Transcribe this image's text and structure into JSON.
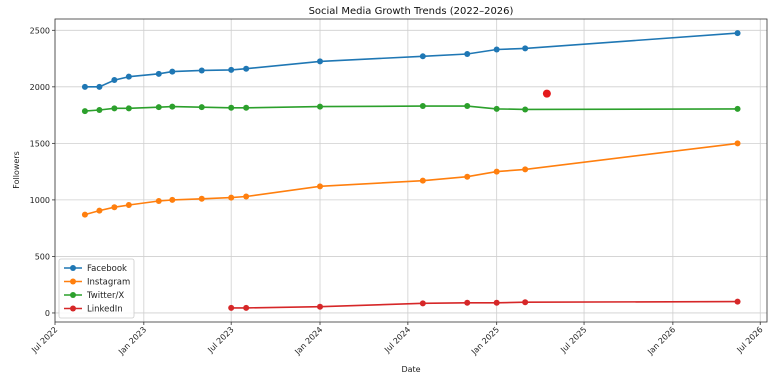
{
  "chart_data": {
    "type": "line",
    "title": "Social Media Growth Trends (2022–2026)",
    "xlabel": "Date",
    "ylabel": "Followers",
    "xlim": [
      "2022-07-01",
      "2026-07-15"
    ],
    "ylim": [
      -80,
      2600
    ],
    "grid": true,
    "legend_position": "lower-left",
    "x_ticks": [
      {
        "date": "2022-07-01",
        "label": "Jul 2022"
      },
      {
        "date": "2023-01-01",
        "label": "Jan 2023"
      },
      {
        "date": "2023-07-01",
        "label": "Jul 2023"
      },
      {
        "date": "2024-01-01",
        "label": "Jan 2024"
      },
      {
        "date": "2024-07-01",
        "label": "Jul 2024"
      },
      {
        "date": "2025-01-01",
        "label": "Jan 2025"
      },
      {
        "date": "2025-07-01",
        "label": "Jul 2025"
      },
      {
        "date": "2026-01-01",
        "label": "Jan 2026"
      },
      {
        "date": "2026-07-01",
        "label": "Jul 2026"
      }
    ],
    "y_ticks": [
      0,
      500,
      1000,
      1500,
      2000,
      2500
    ],
    "series": [
      {
        "name": "Facebook",
        "color": "#1f77b4",
        "points": [
          {
            "x": "2022-09-01",
            "y": 2000
          },
          {
            "x": "2022-10-01",
            "y": 2000
          },
          {
            "x": "2022-11-01",
            "y": 2060
          },
          {
            "x": "2022-12-01",
            "y": 2090
          },
          {
            "x": "2023-02-01",
            "y": 2115
          },
          {
            "x": "2023-03-01",
            "y": 2135
          },
          {
            "x": "2023-05-01",
            "y": 2145
          },
          {
            "x": "2023-07-01",
            "y": 2150
          },
          {
            "x": "2023-08-01",
            "y": 2160
          },
          {
            "x": "2024-01-01",
            "y": 2225
          },
          {
            "x": "2024-08-01",
            "y": 2270
          },
          {
            "x": "2024-11-01",
            "y": 2290
          },
          {
            "x": "2025-01-01",
            "y": 2330
          },
          {
            "x": "2025-03-01",
            "y": 2340
          },
          {
            "x": "2026-05-15",
            "y": 2475
          }
        ]
      },
      {
        "name": "Instagram",
        "color": "#ff7f0e",
        "points": [
          {
            "x": "2022-09-01",
            "y": 870
          },
          {
            "x": "2022-10-01",
            "y": 905
          },
          {
            "x": "2022-11-01",
            "y": 935
          },
          {
            "x": "2022-12-01",
            "y": 955
          },
          {
            "x": "2023-02-01",
            "y": 990
          },
          {
            "x": "2023-03-01",
            "y": 1000
          },
          {
            "x": "2023-05-01",
            "y": 1010
          },
          {
            "x": "2023-07-01",
            "y": 1020
          },
          {
            "x": "2023-08-01",
            "y": 1030
          },
          {
            "x": "2024-01-01",
            "y": 1120
          },
          {
            "x": "2024-08-01",
            "y": 1170
          },
          {
            "x": "2024-11-01",
            "y": 1205
          },
          {
            "x": "2025-01-01",
            "y": 1250
          },
          {
            "x": "2025-03-01",
            "y": 1270
          },
          {
            "x": "2026-05-15",
            "y": 1500
          }
        ]
      },
      {
        "name": "Twitter/X",
        "color": "#2ca02c",
        "points": [
          {
            "x": "2022-09-01",
            "y": 1785
          },
          {
            "x": "2022-10-01",
            "y": 1795
          },
          {
            "x": "2022-11-01",
            "y": 1810
          },
          {
            "x": "2022-12-01",
            "y": 1810
          },
          {
            "x": "2023-02-01",
            "y": 1820
          },
          {
            "x": "2023-03-01",
            "y": 1825
          },
          {
            "x": "2023-05-01",
            "y": 1820
          },
          {
            "x": "2023-07-01",
            "y": 1815
          },
          {
            "x": "2023-08-01",
            "y": 1815
          },
          {
            "x": "2024-01-01",
            "y": 1825
          },
          {
            "x": "2024-08-01",
            "y": 1830
          },
          {
            "x": "2024-11-01",
            "y": 1830
          },
          {
            "x": "2025-01-01",
            "y": 1805
          },
          {
            "x": "2025-03-01",
            "y": 1800
          },
          {
            "x": "2026-05-15",
            "y": 1805
          }
        ]
      },
      {
        "name": "LinkedIn",
        "color": "#d62728",
        "points": [
          {
            "x": "2023-07-01",
            "y": 45
          },
          {
            "x": "2023-08-01",
            "y": 45
          },
          {
            "x": "2024-01-01",
            "y": 55
          },
          {
            "x": "2024-08-01",
            "y": 85
          },
          {
            "x": "2024-11-01",
            "y": 90
          },
          {
            "x": "2025-01-01",
            "y": 90
          },
          {
            "x": "2025-03-01",
            "y": 95
          },
          {
            "x": "2026-05-15",
            "y": 100
          }
        ]
      }
    ],
    "extra_points": [
      {
        "x": "2025-04-15",
        "y": 1940,
        "color": "#e41a1c"
      }
    ]
  }
}
